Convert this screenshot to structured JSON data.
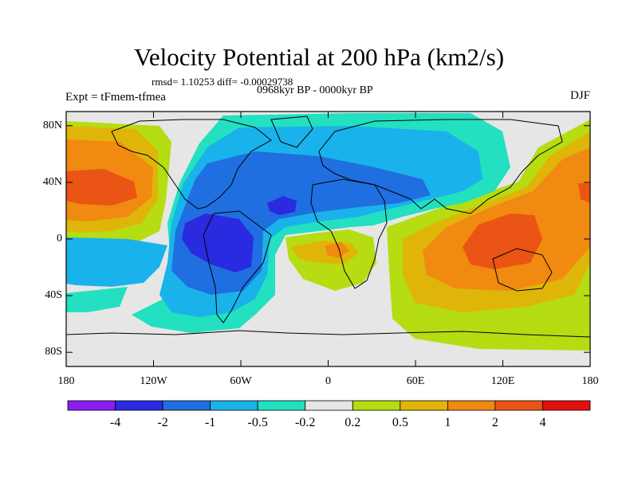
{
  "title": "Velocity Potential at 200 hPa (km2/s)",
  "stats": "rmsd= 1.10253 diff= -0.00029738",
  "subtitle": "0968kyr BP - 0000kyr BP",
  "left_label": "Expt = tFmem-tfmea",
  "season": "DJF",
  "map_data": {
    "type": "filled-contour-map",
    "variable": "velocity potential difference",
    "units": "km2/s",
    "lon_range": [
      -180,
      180
    ],
    "lat_range": [
      -90,
      90
    ],
    "y_ticks": [
      {
        "label": "80N",
        "lat": 80
      },
      {
        "label": "40N",
        "lat": 40
      },
      {
        "label": "0",
        "lat": 0
      },
      {
        "label": "40S",
        "lat": -40
      },
      {
        "label": "80S",
        "lat": -80
      }
    ],
    "x_ticks": [
      {
        "label": "180",
        "lon": -180
      },
      {
        "label": "120W",
        "lon": -120
      },
      {
        "label": "60W",
        "lon": -60
      },
      {
        "label": "0",
        "lon": 0
      },
      {
        "label": "60E",
        "lon": 60
      },
      {
        "label": "120E",
        "lon": 120
      },
      {
        "label": "180",
        "lon": 180
      }
    ]
  },
  "colorbar": {
    "colors": [
      "#8a1ef0",
      "#2a2ae0",
      "#1f6fe0",
      "#1ab2ea",
      "#22e0c0",
      "#e6e6e6",
      "#b6dc12",
      "#e0b50a",
      "#f08a10",
      "#ea5414",
      "#e31010"
    ],
    "labels": [
      "-4",
      "-2",
      "-1",
      "-0.5",
      "-0.2",
      "0.2",
      "0.5",
      "1",
      "2",
      "4"
    ]
  }
}
